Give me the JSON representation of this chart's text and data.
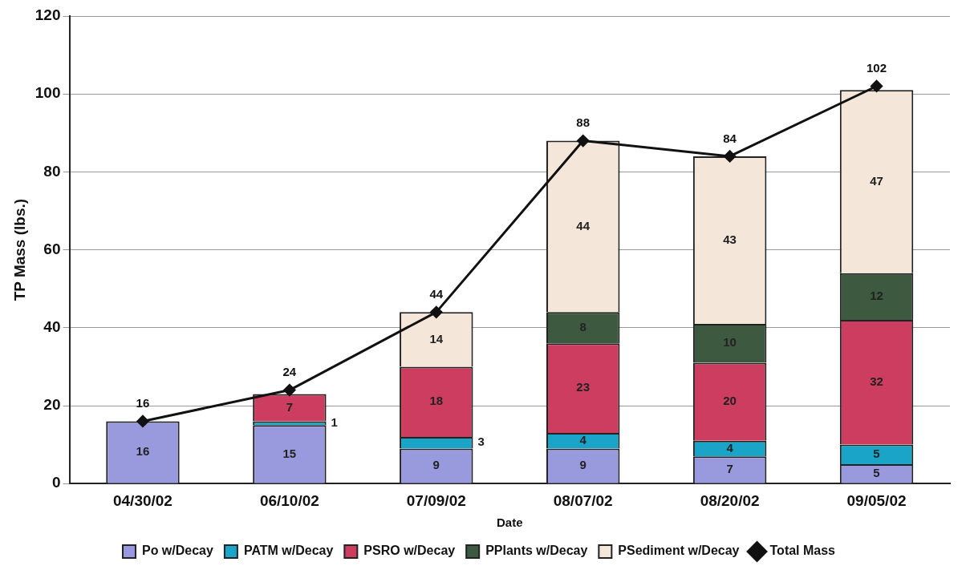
{
  "chart_data": {
    "type": "bar",
    "stacked": true,
    "xlabel": "Date",
    "ylabel": "TP Mass (lbs.)",
    "categories": [
      "04/30/02",
      "06/10/02",
      "07/09/02",
      "08/07/02",
      "08/20/02",
      "09/05/02"
    ],
    "series": [
      {
        "name": "Po w/Decay",
        "color": "#9999dd",
        "values": [
          16,
          15,
          9,
          9,
          7,
          5
        ]
      },
      {
        "name": "PATM w/Decay",
        "color": "#1aa5c8",
        "values": [
          null,
          1,
          3,
          4,
          4,
          5
        ]
      },
      {
        "name": "PSRO w/Decay",
        "color": "#cc3d5f",
        "values": [
          null,
          7,
          18,
          23,
          20,
          32
        ]
      },
      {
        "name": "PPlants w/Decay",
        "color": "#3d5a40",
        "values": [
          null,
          null,
          null,
          8,
          10,
          12
        ]
      },
      {
        "name": "PSediment w/Decay",
        "color": "#f4e6d8",
        "values": [
          null,
          null,
          14,
          44,
          43,
          47
        ]
      },
      {
        "name": "Total Mass",
        "type": "line",
        "color": "#111111",
        "values": [
          16,
          24,
          44,
          88,
          84,
          102
        ]
      }
    ],
    "ylim": [
      0,
      120
    ],
    "yticks": [
      0,
      20,
      40,
      60,
      80,
      100,
      120
    ],
    "grid": "y",
    "legend": "bottom",
    "marker": "diamond",
    "data_labels": true
  }
}
